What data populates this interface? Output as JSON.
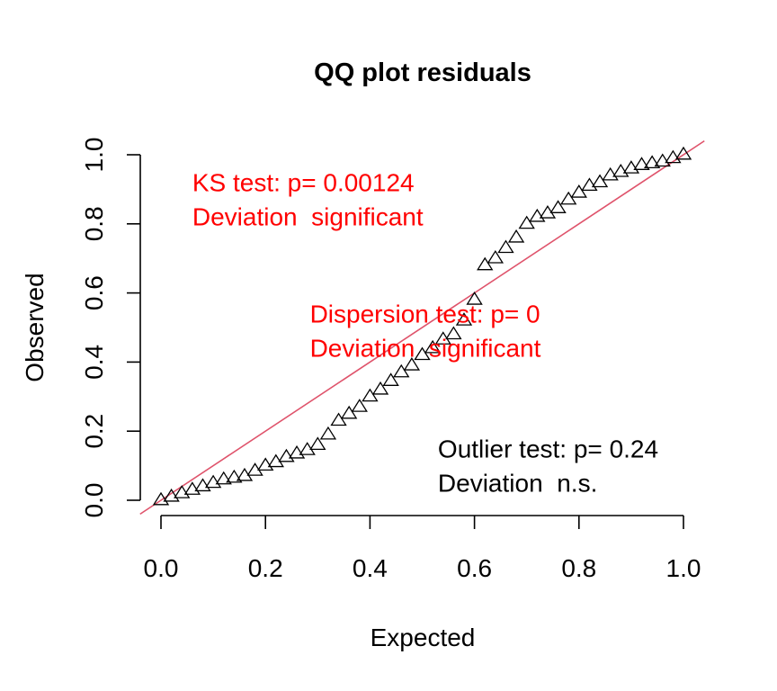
{
  "chart_data": {
    "type": "scatter",
    "title": "QQ plot residuals",
    "xlabel": "Expected",
    "ylabel": "Observed",
    "xlim": [
      0,
      1
    ],
    "ylim": [
      0,
      1
    ],
    "xticks": [
      "0.0",
      "0.2",
      "0.4",
      "0.6",
      "0.8",
      "1.0"
    ],
    "yticks": [
      "0.0",
      "0.2",
      "0.4",
      "0.6",
      "0.8",
      "1.0"
    ],
    "marker": "open-triangle",
    "reference_line": {
      "slope": 1,
      "intercept": 0,
      "color": "#DF536B"
    },
    "series": [
      {
        "x": [
          0.0,
          0.02,
          0.04,
          0.06,
          0.08,
          0.1,
          0.12,
          0.14,
          0.16,
          0.18,
          0.2,
          0.22,
          0.24,
          0.26,
          0.28,
          0.3,
          0.32,
          0.34,
          0.36,
          0.38,
          0.4,
          0.42,
          0.44,
          0.46,
          0.48,
          0.5,
          0.52,
          0.54,
          0.56,
          0.58,
          0.6,
          0.62,
          0.64,
          0.66,
          0.68,
          0.7,
          0.72,
          0.74,
          0.76,
          0.78,
          0.8,
          0.82,
          0.84,
          0.86,
          0.88,
          0.9,
          0.92,
          0.94,
          0.96,
          0.98,
          1.0
        ],
        "y": [
          0.0,
          0.01,
          0.02,
          0.03,
          0.04,
          0.05,
          0.06,
          0.065,
          0.07,
          0.085,
          0.1,
          0.11,
          0.125,
          0.135,
          0.145,
          0.16,
          0.19,
          0.23,
          0.25,
          0.27,
          0.3,
          0.32,
          0.345,
          0.37,
          0.39,
          0.42,
          0.44,
          0.465,
          0.48,
          0.52,
          0.58,
          0.68,
          0.7,
          0.73,
          0.76,
          0.8,
          0.82,
          0.83,
          0.845,
          0.87,
          0.89,
          0.91,
          0.92,
          0.94,
          0.95,
          0.96,
          0.97,
          0.975,
          0.98,
          0.99,
          1.0
        ]
      }
    ],
    "annotations": [
      {
        "lines": [
          "KS test: p= 0.00124",
          "Deviation  significant"
        ],
        "color": "#FF0000",
        "x": 0.06,
        "y": 0.92
      },
      {
        "lines": [
          "Dispersion test: p= 0",
          "Deviation  significant"
        ],
        "color": "#FF0000",
        "x": 0.285,
        "y": 0.54
      },
      {
        "lines": [
          "Outlier test: p= 0.24",
          "Deviation  n.s."
        ],
        "color": "#000000",
        "x": 0.53,
        "y": 0.15
      }
    ]
  }
}
